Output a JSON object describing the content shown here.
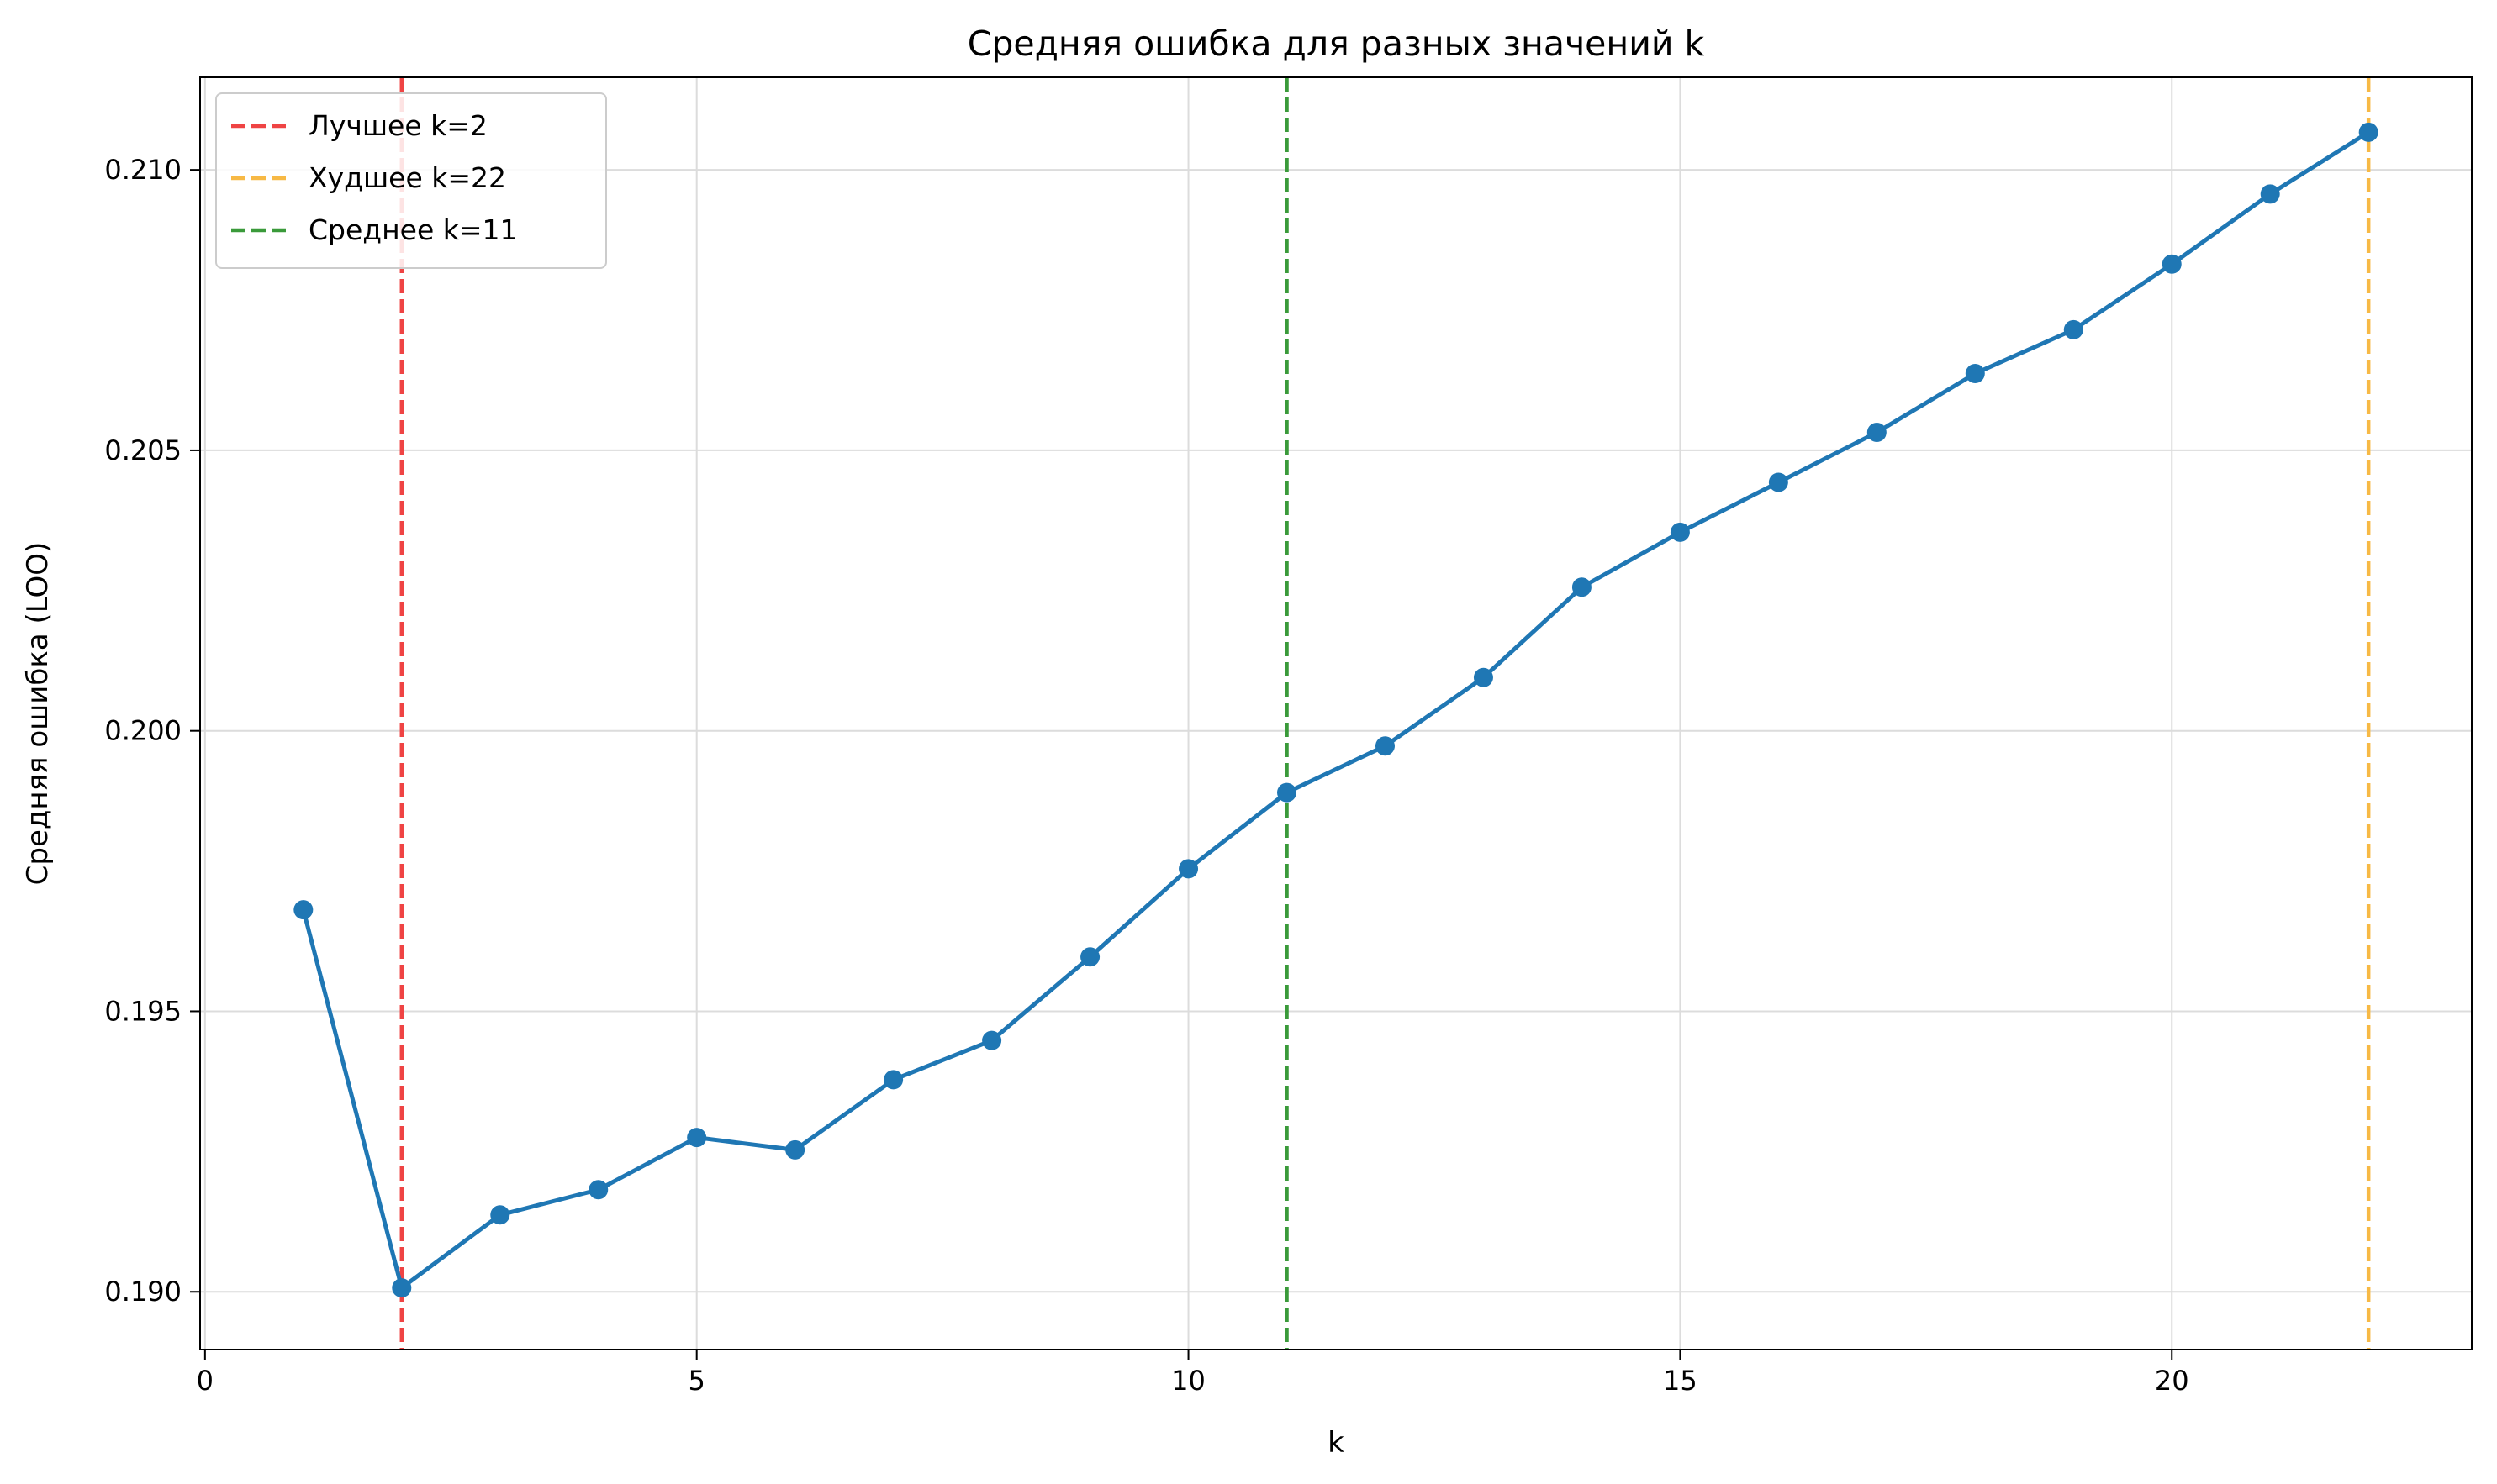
{
  "chart_data": {
    "type": "line",
    "title": "Средняя ошибка для разных значений k",
    "xlabel": "k",
    "ylabel": "Средняя ошибка (LOO)",
    "xlim": [
      -0.05,
      23.05
    ],
    "ylim": [
      0.18897,
      0.21165
    ],
    "xticks": [
      0,
      5,
      10,
      15,
      20
    ],
    "xtick_labels": [
      "0",
      "5",
      "10",
      "15",
      "20"
    ],
    "yticks": [
      0.19,
      0.195,
      0.2,
      0.205,
      0.21
    ],
    "ytick_labels": [
      "0.190",
      "0.195",
      "0.200",
      "0.205",
      "0.210"
    ],
    "grid": true,
    "legend_position": "top-left",
    "series": [
      {
        "color": "#1f77b4",
        "marker": "circle",
        "x": [
          1,
          2,
          3,
          4,
          5,
          6,
          7,
          8,
          9,
          10,
          11,
          12,
          13,
          14,
          15,
          16,
          17,
          18,
          19,
          20,
          21,
          22
        ],
        "y": [
          0.19681,
          0.19007,
          0.19137,
          0.19182,
          0.19275,
          0.19253,
          0.19378,
          0.19448,
          0.19597,
          0.19754,
          0.1989,
          0.19973,
          0.20095,
          0.20256,
          0.20354,
          0.20443,
          0.20532,
          0.20637,
          0.20715,
          0.20832,
          0.20957,
          0.21067
        ]
      }
    ],
    "vlines": [
      {
        "x": 2,
        "color": "#ef4444",
        "label": "Лучшее k=2"
      },
      {
        "x": 22,
        "color": "#f7b945",
        "label": "Худшее k=22"
      },
      {
        "x": 11,
        "color": "#3a9a3a",
        "label": "Среднее k=11"
      }
    ]
  }
}
